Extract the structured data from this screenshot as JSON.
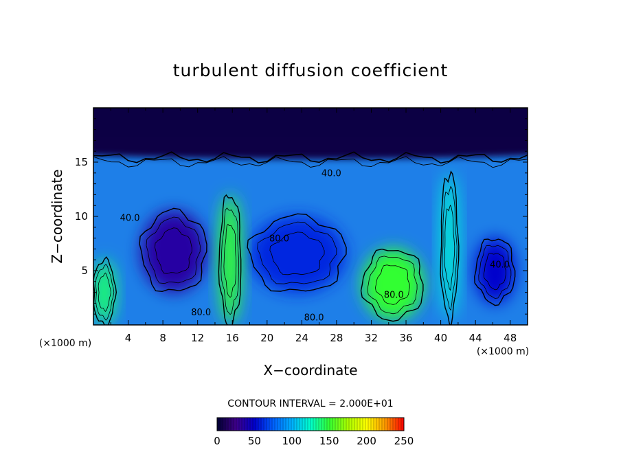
{
  "chart_data": {
    "type": "heatmap",
    "title": "turbulent diffusion coefficient",
    "xlabel": "X−coordinate",
    "ylabel": "Z−coordinate",
    "x_unit": "(×1000 m)",
    "y_unit": "(×1000 m)",
    "xlim": [
      0,
      50
    ],
    "ylim": [
      0,
      20
    ],
    "x_ticks": [
      4,
      8,
      12,
      16,
      20,
      24,
      28,
      32,
      36,
      40,
      44,
      48
    ],
    "y_ticks": [
      5,
      10,
      15
    ],
    "contour_interval_text": "CONTOUR INTERVAL = 2.000E+01",
    "contour_interval": 20,
    "colorbar": {
      "min": 0,
      "max": 250,
      "ticks": [
        0,
        50,
        100,
        150,
        200,
        250
      ],
      "colors": [
        "#000033",
        "#3e0088",
        "#0000cc",
        "#0060ff",
        "#00b0ff",
        "#00ffcc",
        "#33ff33",
        "#aaff00",
        "#ffff00",
        "#ff9900",
        "#ff0000"
      ]
    },
    "contour_labels": [
      {
        "text": "40.0",
        "x": 4.2,
        "z": 9.6
      },
      {
        "text": "80.0",
        "x": 21.4,
        "z": 7.7
      },
      {
        "text": "80.0",
        "x": 34.6,
        "z": 2.5
      },
      {
        "text": "80.0",
        "x": 12.4,
        "z": 0.9
      },
      {
        "text": "80.0",
        "x": 25.4,
        "z": 0.4
      },
      {
        "text": "40.0",
        "x": 46.8,
        "z": 5.3
      },
      {
        "text": "40.0",
        "x": 27.4,
        "z": 13.7
      }
    ],
    "regions": [
      {
        "feature": "upper layer",
        "x": [
          0,
          50
        ],
        "z": [
          15.5,
          20
        ],
        "value": 5
      },
      {
        "feature": "left vortex core",
        "x": [
          5.5,
          13
        ],
        "z": [
          3,
          10.5
        ],
        "value": 35
      },
      {
        "feature": "central vortex core",
        "x": [
          18,
          29
        ],
        "z": [
          3,
          10
        ],
        "value": 60
      },
      {
        "feature": "right vortex core",
        "x": [
          44,
          48.5
        ],
        "z": [
          2,
          8
        ],
        "value": 50
      },
      {
        "feature": "bottom-center high-K zone",
        "x": [
          31,
          38
        ],
        "z": [
          0.5,
          7
        ],
        "value": 150
      },
      {
        "feature": "left updraft",
        "x": [
          14.5,
          17
        ],
        "z": [
          0,
          12
        ],
        "value": 150
      },
      {
        "feature": "right updraft",
        "x": [
          40,
          42
        ],
        "z": [
          0.5,
          14
        ],
        "value": 120
      },
      {
        "feature": "bottom-left",
        "x": [
          0,
          2.5
        ],
        "z": [
          0,
          6
        ],
        "value": 140
      }
    ]
  }
}
